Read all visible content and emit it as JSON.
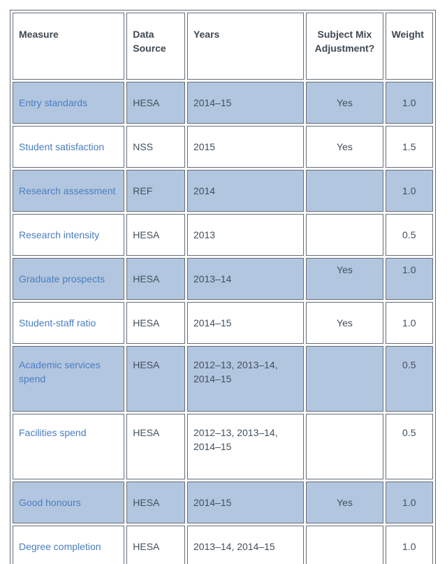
{
  "colors": {
    "row_shaded_bg": "#b3c6df",
    "row_plain_bg": "#ffffff",
    "cell_border": "#636d76",
    "outer_border": "#5f6a73",
    "header_text": "#3d4852",
    "body_text": "#40505c",
    "link_text": "#4a7dc0"
  },
  "table": {
    "columns": [
      {
        "label": "Measure",
        "align": "left"
      },
      {
        "label": "Data Source",
        "align": "left"
      },
      {
        "label": "Years",
        "align": "left"
      },
      {
        "label": "Subject Mix Adjustment?",
        "align": "center"
      },
      {
        "label": "Weight",
        "align": "left"
      }
    ],
    "rows": [
      {
        "measure": "Entry standards",
        "source": "HESA",
        "years": "2014–15",
        "adjustment": "Yes",
        "weight": "1.0",
        "shaded": true,
        "values_top": false
      },
      {
        "measure": "Student satisfaction",
        "source": "NSS",
        "years": "2015",
        "adjustment": "Yes",
        "weight": "1.5",
        "shaded": false,
        "values_top": false
      },
      {
        "measure": "Research assessment",
        "source": "REF",
        "years": "2014",
        "adjustment": "",
        "weight": "1.0",
        "shaded": true,
        "values_top": false
      },
      {
        "measure": "Research intensity",
        "source": "HESA",
        "years": "2013",
        "adjustment": "",
        "weight": "0.5",
        "shaded": false,
        "values_top": false
      },
      {
        "measure": "Graduate prospects",
        "source": "HESA",
        "years": "2013–14",
        "adjustment": "Yes",
        "weight": "1.0",
        "shaded": true,
        "values_top": true
      },
      {
        "measure": "Student-staff ratio",
        "source": "HESA",
        "years": "2014–15",
        "adjustment": "Yes",
        "weight": "1.0",
        "shaded": false,
        "values_top": false
      },
      {
        "measure": "Academic services spend",
        "source": "HESA",
        "years": "2012–13, 2013–14, 2014–15",
        "adjustment": "",
        "weight": "0.5",
        "shaded": true,
        "values_top": false
      },
      {
        "measure": "Facilities spend",
        "source": "HESA",
        "years": "2012–13, 2013–14, 2014–15",
        "adjustment": "",
        "weight": "0.5",
        "shaded": false,
        "values_top": false
      },
      {
        "measure": "Good honours",
        "source": "HESA",
        "years": "2014–15",
        "adjustment": "Yes",
        "weight": "1.0",
        "shaded": true,
        "values_top": false
      },
      {
        "measure": "Degree completion",
        "source": "HESA",
        "years": "2013–14, 2014–15",
        "adjustment": "",
        "weight": "1.0",
        "shaded": false,
        "values_top": false
      }
    ]
  }
}
